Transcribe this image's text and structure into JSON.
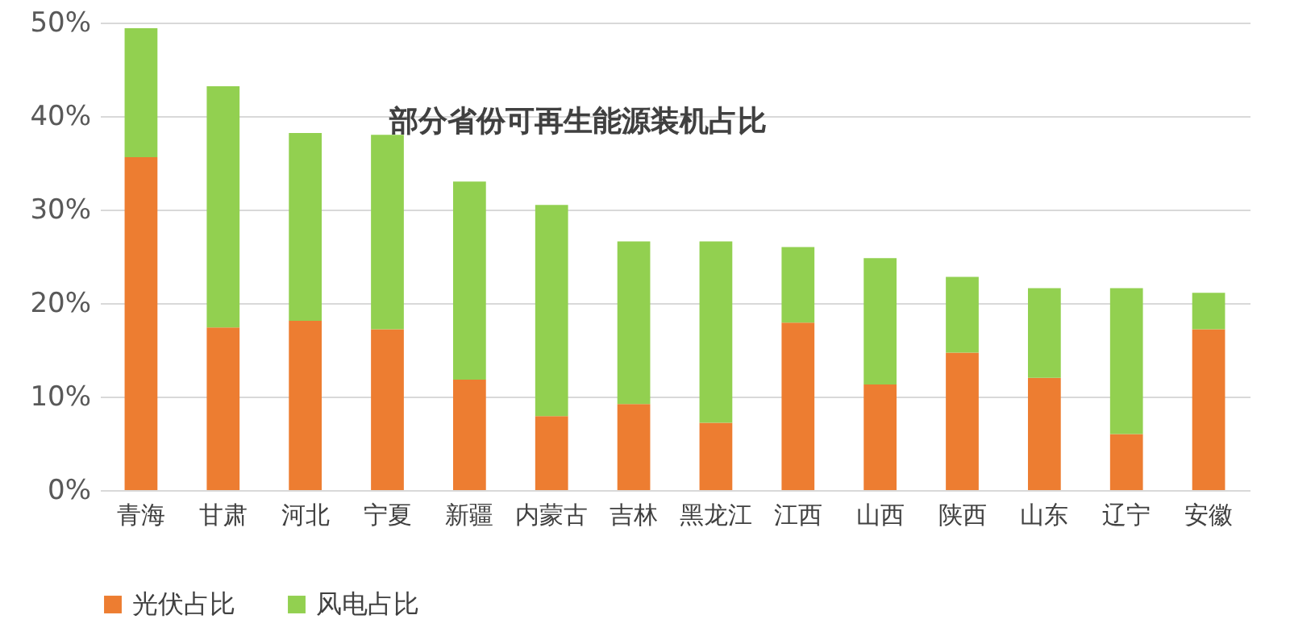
{
  "chart_data": {
    "type": "bar",
    "title": "部分省份可再生能源装机占比",
    "stacked": true,
    "categories": [
      "青海",
      "甘肃",
      "河北",
      "宁夏",
      "新疆",
      "内蒙古",
      "吉林",
      "黑龙江",
      "江西",
      "山西",
      "陕西",
      "山东",
      "辽宁",
      "安徽"
    ],
    "series": [
      {
        "name": "光伏占比",
        "color": "#ed7d31",
        "values": [
          35.6,
          17.4,
          18.1,
          17.2,
          11.8,
          7.9,
          9.2,
          7.2,
          17.9,
          11.3,
          14.7,
          12.0,
          6.0,
          17.2
        ]
      },
      {
        "name": "风电占比",
        "color": "#92d050",
        "values": [
          13.8,
          25.8,
          20.1,
          20.8,
          21.2,
          22.6,
          17.4,
          19.4,
          8.1,
          13.5,
          8.1,
          9.6,
          15.6,
          3.9
        ]
      }
    ],
    "ylim": [
      0,
      50
    ],
    "yticks": [
      {
        "value": 0,
        "label": "0%"
      },
      {
        "value": 10,
        "label": "10%"
      },
      {
        "value": 20,
        "label": "20%"
      },
      {
        "value": 30,
        "label": "30%"
      },
      {
        "value": 40,
        "label": "40%"
      },
      {
        "value": 50,
        "label": "50%"
      }
    ],
    "grid": "y",
    "legend": "bottom"
  }
}
